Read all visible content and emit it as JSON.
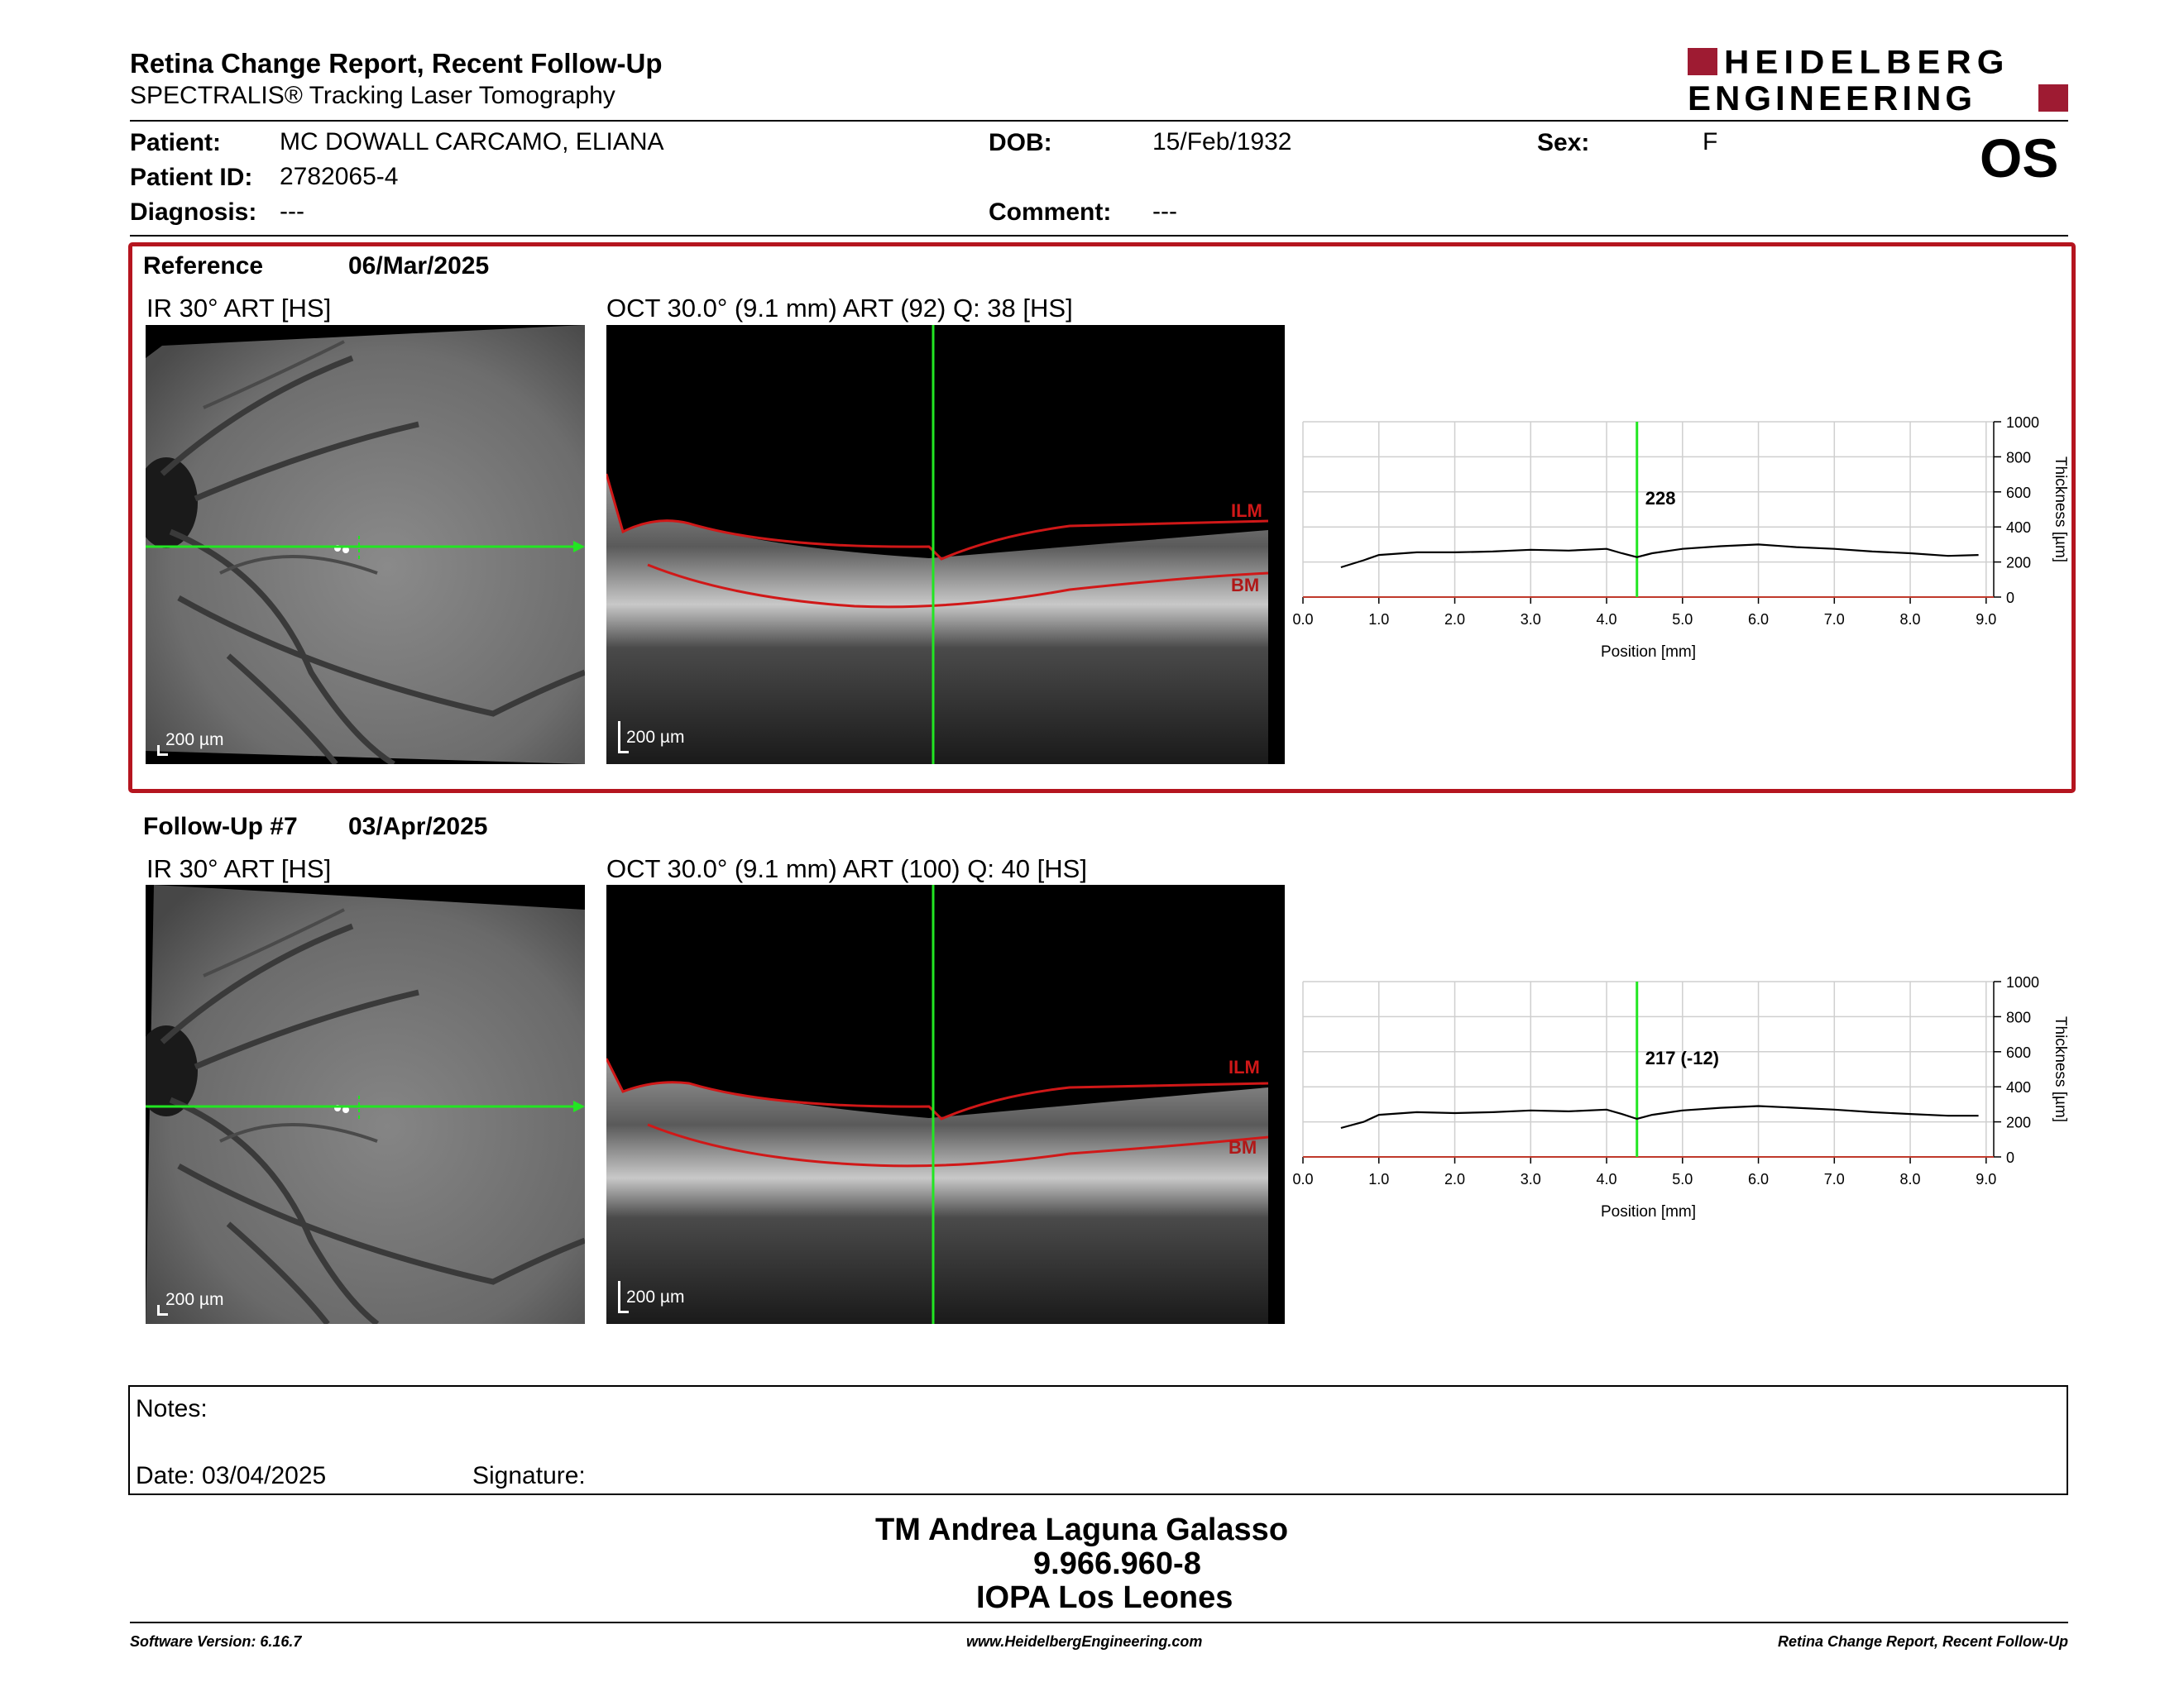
{
  "header": {
    "title": "Retina Change Report, Recent Follow-Up",
    "subtitle": "SPECTRALIS® Tracking Laser Tomography",
    "logo_line1": "HEIDELBERG",
    "logo_line2": "ENGINEERING",
    "eye": "OS"
  },
  "patient": {
    "name_label": "Patient:",
    "name": "MC DOWALL CARCAMO, ELIANA",
    "id_label": "Patient ID:",
    "id": "2782065-4",
    "diagnosis_label": "Diagnosis:",
    "diagnosis": "---",
    "dob_label": "DOB:",
    "dob": "15/Feb/1932",
    "comment_label": "Comment:",
    "comment": "---",
    "sex_label": "Sex:",
    "sex": "F"
  },
  "exams": [
    {
      "title": "Reference",
      "date": "06/Mar/2025",
      "ir_label": "IR 30° ART [HS]",
      "oct_label": "OCT 30.0° (9.1 mm) ART (92) Q: 38 [HS]",
      "ir_scale": "200 µm",
      "oct_scale": "200 µm",
      "ilm_label": "ILM",
      "bm_label": "BM",
      "cursor_value": "228"
    },
    {
      "title": "Follow-Up #7",
      "date": "03/Apr/2025",
      "ir_label": "IR 30° ART [HS]",
      "oct_label": "OCT 30.0° (9.1 mm) ART (100) Q: 40 [HS]",
      "ir_scale": "200 µm",
      "oct_scale": "200 µm",
      "ilm_label": "ILM",
      "bm_label": "BM",
      "cursor_value": "217 (-12)"
    }
  ],
  "chart_data": [
    {
      "type": "line",
      "xlabel": "Position [mm]",
      "ylabel": "Thickness [µm]",
      "xlim": [
        0,
        9.1
      ],
      "ylim": [
        0,
        1000
      ],
      "x_ticks": [
        "0.0",
        "1.0",
        "2.0",
        "3.0",
        "4.0",
        "5.0",
        "6.0",
        "7.0",
        "8.0",
        "9.0"
      ],
      "y_ticks": [
        "0",
        "200",
        "400",
        "600",
        "800",
        "1000"
      ],
      "cursor_x": 4.4,
      "cursor_label": "228",
      "grid": true,
      "series": [
        {
          "x": [
            0.5,
            0.8,
            1.0,
            1.5,
            2.0,
            2.5,
            3.0,
            3.5,
            4.0,
            4.2,
            4.4,
            4.6,
            5.0,
            5.5,
            6.0,
            6.5,
            7.0,
            7.5,
            8.0,
            8.5,
            8.9
          ],
          "y": [
            170,
            210,
            240,
            255,
            255,
            260,
            270,
            265,
            275,
            250,
            228,
            250,
            275,
            290,
            300,
            285,
            275,
            260,
            250,
            235,
            240
          ]
        }
      ]
    },
    {
      "type": "line",
      "xlabel": "Position [mm]",
      "ylabel": "Thickness [µm]",
      "xlim": [
        0,
        9.1
      ],
      "ylim": [
        0,
        1000
      ],
      "x_ticks": [
        "0.0",
        "1.0",
        "2.0",
        "3.0",
        "4.0",
        "5.0",
        "6.0",
        "7.0",
        "8.0",
        "9.0"
      ],
      "y_ticks": [
        "0",
        "200",
        "400",
        "600",
        "800",
        "1000"
      ],
      "cursor_x": 4.4,
      "cursor_label": "217 (-12)",
      "grid": true,
      "series": [
        {
          "x": [
            0.5,
            0.8,
            1.0,
            1.5,
            2.0,
            2.5,
            3.0,
            3.5,
            4.0,
            4.2,
            4.4,
            4.6,
            5.0,
            5.5,
            6.0,
            6.5,
            7.0,
            7.5,
            8.0,
            8.5,
            8.9
          ],
          "y": [
            165,
            200,
            240,
            255,
            250,
            255,
            265,
            260,
            270,
            245,
            217,
            240,
            265,
            280,
            290,
            280,
            270,
            255,
            245,
            235,
            235
          ]
        }
      ]
    }
  ],
  "notes": {
    "label": "Notes:",
    "date_label": "Date: 03/04/2025",
    "signature_label": "Signature:"
  },
  "signer": {
    "name": "TM Andrea Laguna Galasso",
    "id": "9.966.960-8",
    "institution": "IOPA Los Leones"
  },
  "footer": {
    "software": "Software Version: 6.16.7",
    "website": "www.HeidelbergEngineering.com",
    "report": "Retina Change Report, Recent Follow-Up"
  },
  "colors": {
    "frame_red": "#b5151f",
    "logo_red": "#9e1b32",
    "cursor_green": "#22e622",
    "layer_red": "#d01818"
  }
}
